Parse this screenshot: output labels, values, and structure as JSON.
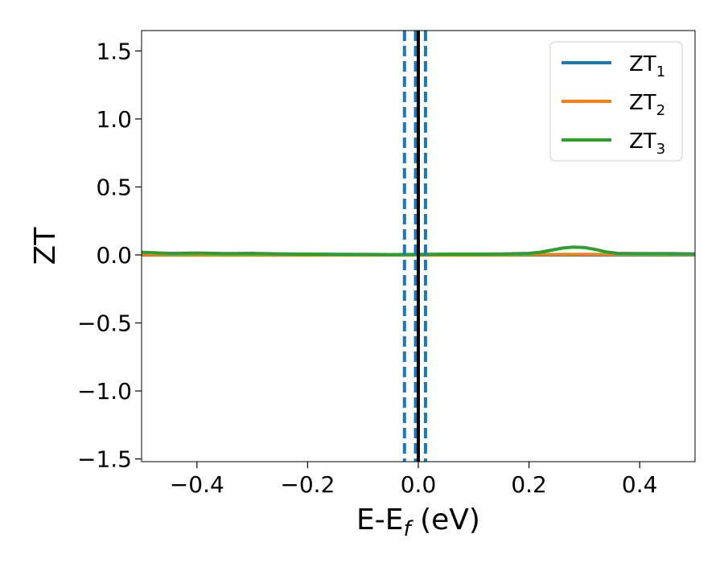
{
  "chart_data": {
    "type": "line",
    "xlabel": "E-E",
    "xlabel_sub": "f",
    "xlabel_unit": " (eV)",
    "ylabel": "ZT",
    "xlim": [
      -0.5,
      0.5
    ],
    "ylim": [
      -1.52,
      1.65
    ],
    "xticks": [
      -0.4,
      -0.2,
      0.0,
      0.2,
      0.4
    ],
    "xtick_labels": [
      "−0.4",
      "−0.2",
      "0.0",
      "0.2",
      "0.4"
    ],
    "yticks": [
      -1.5,
      -1.0,
      -0.5,
      0.0,
      0.5,
      1.0,
      1.5
    ],
    "ytick_labels": [
      "−1.5",
      "−1.0",
      "−0.5",
      "0.0",
      "0.5",
      "1.0",
      "1.5"
    ],
    "grid": false,
    "legend_position": "top-right",
    "series": [
      {
        "name": "ZT",
        "sub": "1",
        "color": "#1f77b4",
        "x": [
          -0.5,
          0.5
        ],
        "y": [
          0.0,
          0.0
        ]
      },
      {
        "name": "ZT",
        "sub": "2",
        "color": "#ff7f0e",
        "x": [
          -0.5,
          -0.4,
          -0.3,
          -0.2,
          -0.1,
          0.0,
          0.1,
          0.2,
          0.3,
          0.4,
          0.5
        ],
        "y": [
          0.003,
          0.002,
          0.002,
          0.001,
          0.001,
          0.001,
          0.002,
          0.003,
          0.004,
          0.003,
          0.003
        ]
      },
      {
        "name": "ZT",
        "sub": "3",
        "color": "#2ca02c",
        "x": [
          -0.5,
          -0.45,
          -0.4,
          -0.35,
          -0.3,
          -0.25,
          -0.2,
          -0.15,
          -0.1,
          -0.05,
          0.0,
          0.05,
          0.1,
          0.15,
          0.2,
          0.22,
          0.24,
          0.26,
          0.28,
          0.3,
          0.32,
          0.34,
          0.36,
          0.4,
          0.45,
          0.5
        ],
        "y": [
          0.02,
          0.012,
          0.014,
          0.01,
          0.012,
          0.008,
          0.006,
          0.005,
          0.004,
          0.003,
          0.004,
          0.006,
          0.006,
          0.007,
          0.012,
          0.02,
          0.035,
          0.05,
          0.058,
          0.055,
          0.04,
          0.022,
          0.012,
          0.01,
          0.01,
          0.008
        ]
      }
    ],
    "vlines": [
      {
        "x": -0.025,
        "style": "dashed",
        "color": "#1f77b4"
      },
      {
        "x": -0.005,
        "style": "dashed",
        "color": "#1f77b4"
      },
      {
        "x": 0.0,
        "style": "solid",
        "color": "#000000"
      },
      {
        "x": 0.013,
        "style": "dashed",
        "color": "#1f77b4"
      }
    ]
  }
}
